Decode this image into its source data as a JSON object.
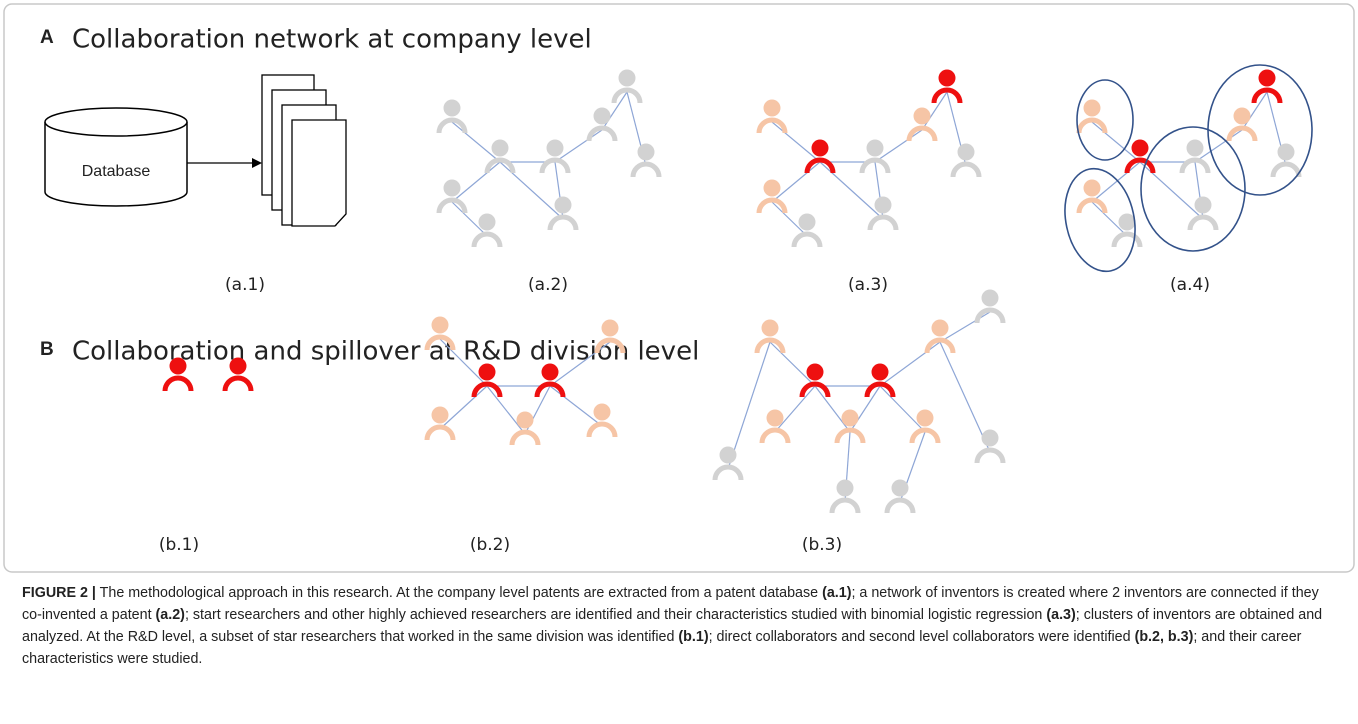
{
  "panels": [
    {
      "letter": "A",
      "title": "Collaboration network at company level",
      "database": "Database",
      "sublabels": [
        "(a.1)",
        "(a.2)",
        "(a.3)",
        "(a.4)"
      ]
    },
    {
      "letter": "B",
      "title": "Collaboration and spillover at R&D division level",
      "sublabels": [
        "(b.1)",
        "(b.2)",
        "(b.3)"
      ]
    }
  ],
  "caption": {
    "segments": [
      {
        "text": "FIGURE 2 |",
        "bold": true
      },
      {
        "text": " The methodological approach in this research. At the company level patents are extracted from a patent database ",
        "bold": false
      },
      {
        "text": "(a.1)",
        "bold": true
      },
      {
        "text": "; a network of inventors is created where 2 inventors are connected if they co-invented a patent ",
        "bold": false
      },
      {
        "text": "(a.2)",
        "bold": true
      },
      {
        "text": "; start researchers and other highly achieved researchers are identified and their characteristics studied with binomial logistic regression ",
        "bold": false
      },
      {
        "text": "(a.3)",
        "bold": true
      },
      {
        "text": "; clusters of inventors are obtained and analyzed. At the R&D level, a subset of star researchers that worked in the same division was identified ",
        "bold": false
      },
      {
        "text": "(b.1)",
        "bold": true
      },
      {
        "text": "; direct collaborators and second level collaborators were identified ",
        "bold": false
      },
      {
        "text": "(b.2, b.3)",
        "bold": true
      },
      {
        "text": "; and their career characteristics were studied.",
        "bold": false
      }
    ]
  }
}
